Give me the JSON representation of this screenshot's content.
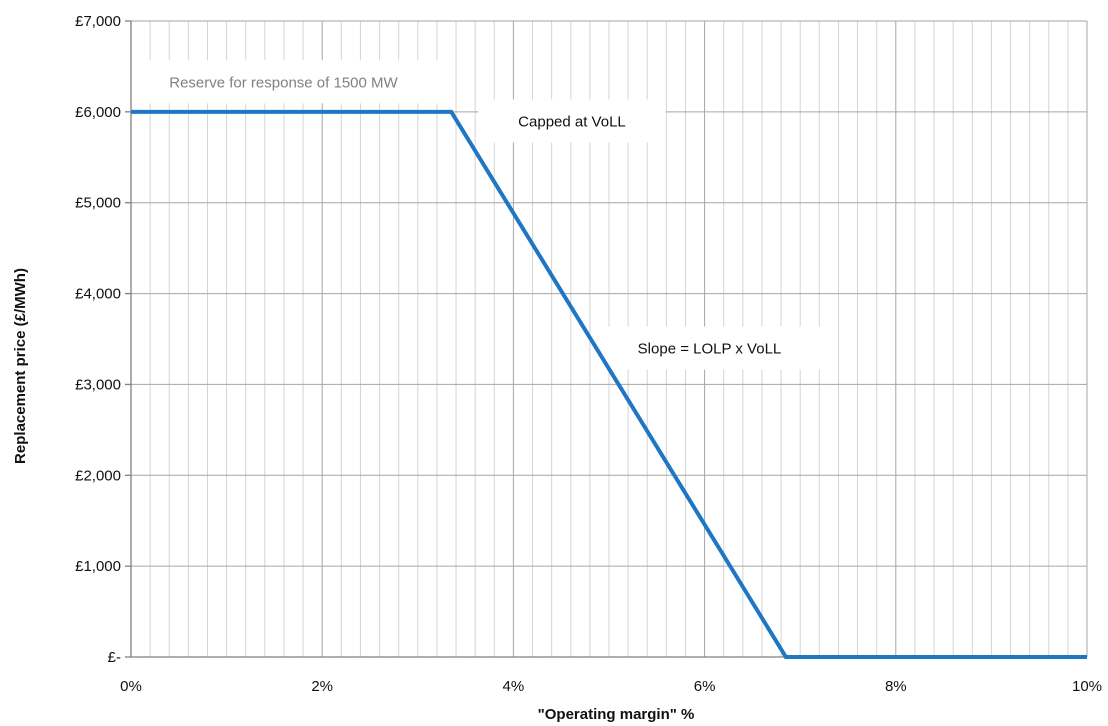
{
  "chart_data": {
    "type": "line",
    "title": "",
    "xlabel": "\"Operating margin\"  %",
    "ylabel": "Replacement price (£/MWh)",
    "xlim": [
      0,
      10
    ],
    "ylim": [
      0,
      7000
    ],
    "x_ticks": [
      {
        "value": 0,
        "label": "0%"
      },
      {
        "value": 2,
        "label": "2%"
      },
      {
        "value": 4,
        "label": "4%"
      },
      {
        "value": 6,
        "label": "6%"
      },
      {
        "value": 8,
        "label": "8%"
      },
      {
        "value": 10,
        "label": "10%"
      }
    ],
    "y_ticks": [
      {
        "value": 0,
        "label": "£-"
      },
      {
        "value": 1000,
        "label": "£1,000"
      },
      {
        "value": 2000,
        "label": "£2,000"
      },
      {
        "value": 3000,
        "label": "£3,000"
      },
      {
        "value": 4000,
        "label": "£4,000"
      },
      {
        "value": 5000,
        "label": "£5,000"
      },
      {
        "value": 6000,
        "label": "£6,000"
      },
      {
        "value": 7000,
        "label": "£7,000"
      }
    ],
    "x_minor_step": 0.2,
    "grid": true,
    "series": [
      {
        "color": "#1f77c4",
        "points": [
          {
            "x": 0,
            "y": 6000
          },
          {
            "x": 3.35,
            "y": 6000
          },
          {
            "x": 6.85,
            "y": 0
          },
          {
            "x": 10,
            "y": 0
          }
        ]
      }
    ],
    "annotations": [
      {
        "text": "Reserve for response of 1500 MW",
        "x": 0.4,
        "y": 6270,
        "color": "#808080"
      },
      {
        "text": "Capped at VoLL",
        "x": 4.05,
        "y": 5840,
        "color": "#111111"
      },
      {
        "text": "Slope = LOLP x VoLL",
        "x": 5.3,
        "y": 3340,
        "color": "#111111"
      }
    ]
  }
}
